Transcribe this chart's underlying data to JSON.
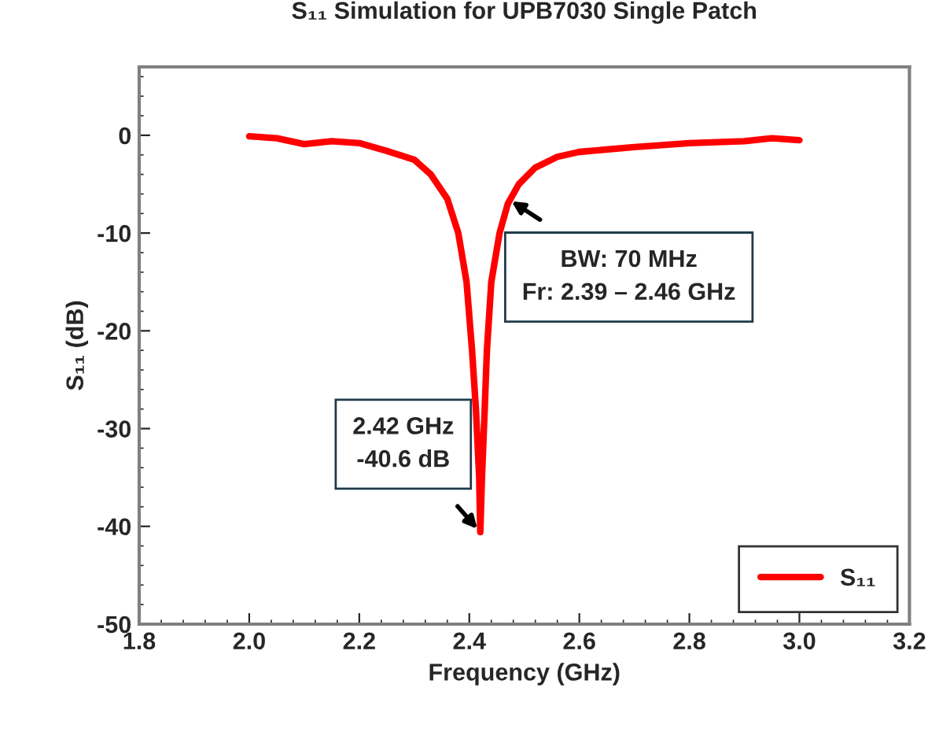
{
  "chart_data": {
    "type": "line",
    "title": "S₁₁ Simulation for UPB7030 Single Patch",
    "xlabel": "Frequency (GHz)",
    "ylabel": "S₁₁ (dB)",
    "x": [
      2.0,
      2.05,
      2.1,
      2.15,
      2.2,
      2.25,
      2.3,
      2.33,
      2.36,
      2.38,
      2.395,
      2.405,
      2.412,
      2.418,
      2.42,
      2.423,
      2.428,
      2.432,
      2.44,
      2.455,
      2.47,
      2.49,
      2.52,
      2.56,
      2.6,
      2.7,
      2.8,
      2.9,
      2.95,
      3.0
    ],
    "series": [
      {
        "name": "S₁₁",
        "color": "#ff0000",
        "values": [
          -0.1,
          -0.3,
          -0.9,
          -0.6,
          -0.8,
          -1.6,
          -2.5,
          -4,
          -6.5,
          -10,
          -15,
          -22,
          -28,
          -35,
          -40.6,
          -35,
          -28,
          -22,
          -15,
          -10,
          -7,
          -5,
          -3.3,
          -2.2,
          -1.7,
          -1.2,
          -0.8,
          -0.6,
          -0.3,
          -0.5
        ]
      }
    ],
    "xlim": [
      1.8,
      3.2
    ],
    "xticks": [
      {
        "value": 1.8,
        "label": "1.8"
      },
      {
        "value": 2.0,
        "label": "2.0"
      },
      {
        "value": 2.2,
        "label": "2.2"
      },
      {
        "value": 2.4,
        "label": "2.4"
      },
      {
        "value": 2.6,
        "label": "2.6"
      },
      {
        "value": 2.8,
        "label": "2.8"
      },
      {
        "value": 3.0,
        "label": "3.0"
      },
      {
        "value": 3.2,
        "label": "3.2"
      }
    ],
    "ylim": [
      -50,
      7
    ],
    "yticks": [
      -50,
      -40,
      -30,
      -20,
      -10,
      0
    ],
    "annotations": [
      {
        "text": "2.42 GHz\n-40.6 dB",
        "x": 2.42,
        "y": -40.6
      },
      {
        "text": "BW: 70 MHz\nFr: 2.39 – 2.46 GHz",
        "x": 2.47,
        "y": -6.5
      }
    ],
    "legend": "bottom right",
    "grid": false,
    "marker": "none",
    "line_style": "solid"
  }
}
